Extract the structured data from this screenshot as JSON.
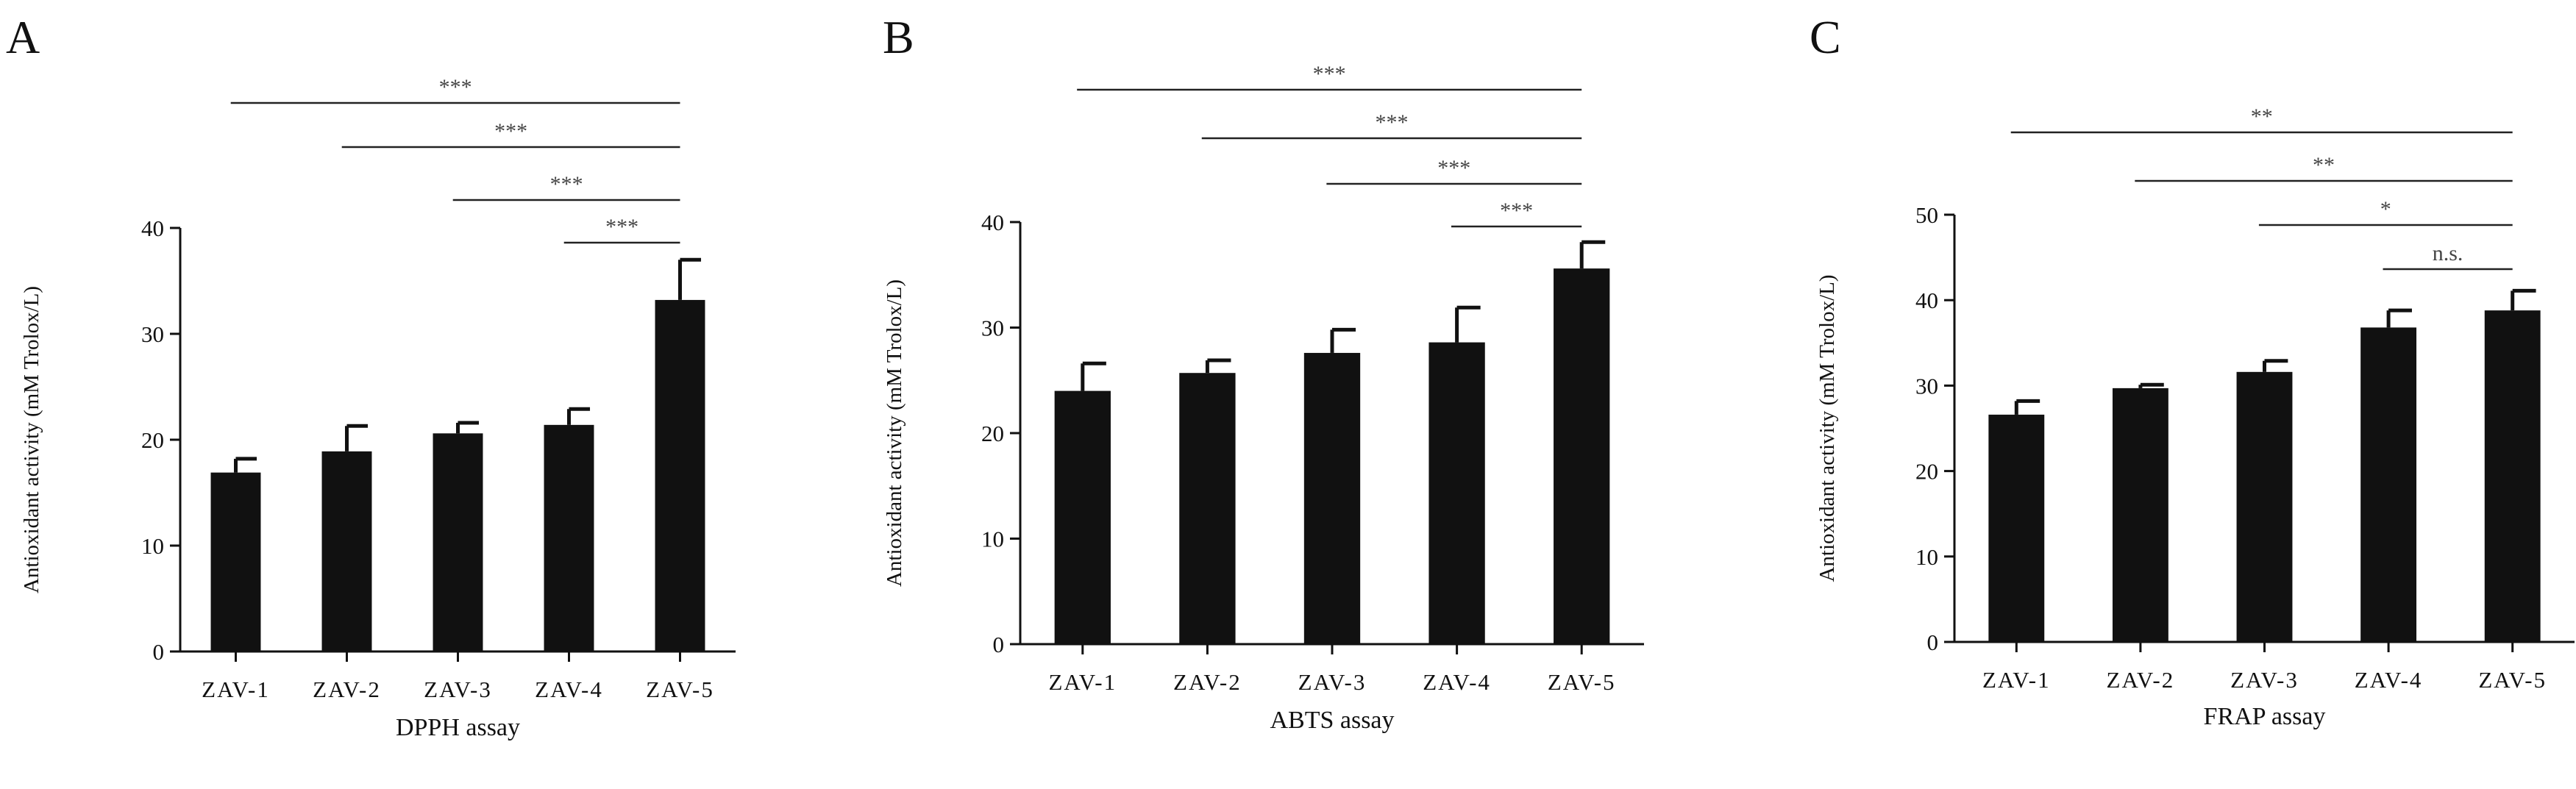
{
  "chart_data": [
    {
      "panel": "A",
      "type": "bar",
      "categories": [
        "ZAV-1",
        "ZAV-2",
        "ZAV-3",
        "ZAV-4",
        "ZAV-5"
      ],
      "values": [
        16.9,
        18.9,
        20.6,
        21.4,
        33.2
      ],
      "errors": [
        1.3,
        2.4,
        1.0,
        1.5,
        3.8
      ],
      "xlabel": "DPPH assay",
      "ylabel": "Antioxidant activity (mM Trolox/L)",
      "ylim": [
        0,
        40
      ],
      "yticks": [
        0,
        10,
        20,
        30,
        40
      ],
      "grid": false,
      "significance": [
        {
          "from": "ZAV-1",
          "to": "ZAV-5",
          "label": "***"
        },
        {
          "from": "ZAV-2",
          "to": "ZAV-5",
          "label": "***"
        },
        {
          "from": "ZAV-3",
          "to": "ZAV-5",
          "label": "***"
        },
        {
          "from": "ZAV-4",
          "to": "ZAV-5",
          "label": "***"
        }
      ]
    },
    {
      "panel": "B",
      "type": "bar",
      "categories": [
        "ZAV-1",
        "ZAV-2",
        "ZAV-3",
        "ZAV-4",
        "ZAV-5"
      ],
      "values": [
        24.0,
        25.7,
        27.6,
        28.6,
        35.6
      ],
      "errors": [
        2.6,
        1.2,
        2.2,
        3.3,
        2.5
      ],
      "xlabel": "ABTS assay",
      "ylabel": "Antioxidant activity (mM Trolox/L)",
      "ylim": [
        0,
        40
      ],
      "yticks": [
        0,
        10,
        20,
        30,
        40
      ],
      "grid": false,
      "significance": [
        {
          "from": "ZAV-1",
          "to": "ZAV-5",
          "label": "***"
        },
        {
          "from": "ZAV-2",
          "to": "ZAV-5",
          "label": "***"
        },
        {
          "from": "ZAV-3",
          "to": "ZAV-5",
          "label": "***"
        },
        {
          "from": "ZAV-4",
          "to": "ZAV-5",
          "label": "***"
        }
      ]
    },
    {
      "panel": "C",
      "type": "bar",
      "categories": [
        "ZAV-1",
        "ZAV-2",
        "ZAV-3",
        "ZAV-4",
        "ZAV-5"
      ],
      "values": [
        26.6,
        29.7,
        31.6,
        36.8,
        38.8
      ],
      "errors": [
        1.6,
        0.4,
        1.3,
        2.0,
        2.3
      ],
      "xlabel": "FRAP assay",
      "ylabel": "Antioxidant activity (mM Trolox/L)",
      "ylim": [
        0,
        50
      ],
      "yticks": [
        0,
        10,
        20,
        30,
        40,
        50
      ],
      "grid": false,
      "significance": [
        {
          "from": "ZAV-1",
          "to": "ZAV-5",
          "label": "**"
        },
        {
          "from": "ZAV-2",
          "to": "ZAV-5",
          "label": "**"
        },
        {
          "from": "ZAV-3",
          "to": "ZAV-5",
          "label": "*"
        },
        {
          "from": "ZAV-4",
          "to": "ZAV-5",
          "label": "n.s."
        }
      ]
    }
  ],
  "colors": {
    "bar": "#111111",
    "axis": "#111111",
    "bracket": "#222222"
  }
}
